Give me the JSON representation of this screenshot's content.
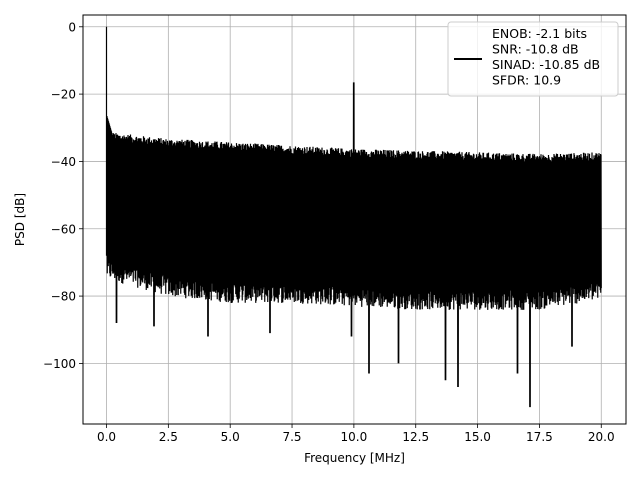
{
  "chart_data": {
    "type": "line",
    "title": "",
    "xlabel": "Frequency [MHz]",
    "ylabel": "PSD [dB]",
    "xlim": [
      -0.95,
      21.0
    ],
    "ylim": [
      -118.0,
      3.5
    ],
    "xticks": [
      0.0,
      2.5,
      5.0,
      7.5,
      10.0,
      12.5,
      15.0,
      17.5,
      20.0
    ],
    "xtick_labels": [
      "0.0",
      "2.5",
      "5.0",
      "7.5",
      "10.0",
      "12.5",
      "15.0",
      "17.5",
      "20.0"
    ],
    "yticks": [
      0,
      -20,
      -40,
      -60,
      -80,
      -100
    ],
    "ytick_labels": [
      "0",
      "−20",
      "−40",
      "−60",
      "−80",
      "−100"
    ],
    "grid": true,
    "legend_position": "top-right",
    "legend_entries": [
      "ENOB: -2.1 bits",
      "SNR: -10.8 dB",
      "SINAD: -10.85 dB",
      "SFDR: 10.9"
    ],
    "series": [
      {
        "color": "#000000",
        "x_range": [
          0.0,
          20.0
        ],
        "description_values": {
          "dc_peak": {
            "x": 0.0,
            "y": 0.0
          },
          "tone_peak": {
            "x": 10.0,
            "y": -16.5
          },
          "upper_envelope": [
            [
              0.05,
              -33
            ],
            [
              2.5,
              -35
            ],
            [
              5.0,
              -36
            ],
            [
              7.5,
              -37
            ],
            [
              10.0,
              -38
            ],
            [
              12.5,
              -38.5
            ],
            [
              15.0,
              -39
            ],
            [
              17.5,
              -39.5
            ],
            [
              20.0,
              -39
            ]
          ],
          "lower_envelope": [
            [
              0.05,
              -73
            ],
            [
              2.5,
              -78
            ],
            [
              5.0,
              -80
            ],
            [
              7.5,
              -80
            ],
            [
              10.0,
              -81
            ],
            [
              12.5,
              -82
            ],
            [
              15.0,
              -82
            ],
            [
              17.5,
              -82
            ],
            [
              20.0,
              -79
            ]
          ],
          "deep_dips": [
            [
              0.4,
              -88
            ],
            [
              1.9,
              -89
            ],
            [
              4.1,
              -92
            ],
            [
              6.6,
              -91
            ],
            [
              9.9,
              -92
            ],
            [
              10.6,
              -103
            ],
            [
              11.8,
              -100
            ],
            [
              13.7,
              -105
            ],
            [
              14.2,
              -107
            ],
            [
              16.6,
              -103
            ],
            [
              17.1,
              -113
            ],
            [
              18.8,
              -95
            ]
          ]
        }
      }
    ]
  }
}
